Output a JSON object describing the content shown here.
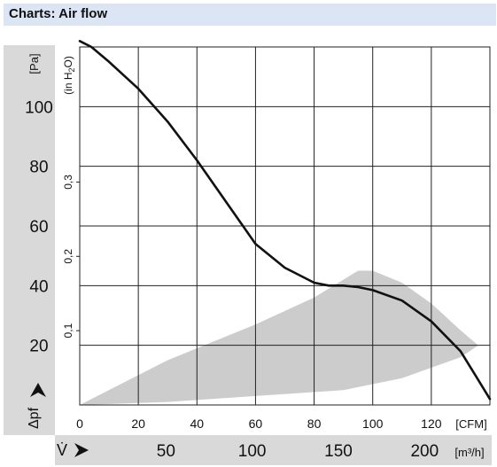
{
  "header": {
    "title": "Charts: Air flow"
  },
  "chart_data": {
    "type": "line",
    "title": "",
    "left_axis": {
      "unit": "[Pa]",
      "range": [
        0,
        120
      ],
      "ticks": [
        20,
        40,
        60,
        80,
        100
      ]
    },
    "inner_axis": {
      "unit_prefix": "(in H",
      "unit_sub": "2",
      "unit_suffix": "O)",
      "ticks": [
        "0,1",
        "0,2",
        "0,3"
      ],
      "tick_values": [
        0.1,
        0.2,
        0.3
      ]
    },
    "x_axis": {
      "unit": "[CFM]",
      "range": [
        0,
        140
      ],
      "ticks": [
        0,
        20,
        40,
        60,
        80,
        100,
        120
      ]
    },
    "x2_axis": {
      "unit": "[m³/h]",
      "ticks": [
        "50",
        "100",
        "150",
        "200"
      ],
      "tick_values": [
        50,
        100,
        150,
        200
      ]
    },
    "y_symbol": "Δpf",
    "x_symbol": "V̇",
    "series": [
      {
        "x": [
          0,
          4,
          10,
          20,
          30,
          40,
          50,
          60,
          70,
          80,
          85,
          88,
          90,
          95,
          100,
          110,
          120,
          130,
          135,
          140
        ],
        "y": [
          122,
          120,
          115,
          106,
          95,
          82,
          68,
          54,
          46,
          41,
          40,
          40,
          40,
          39.5,
          38.5,
          35,
          28,
          18,
          10,
          2
        ]
      }
    ],
    "operating_region": {
      "color": "#cccccc",
      "x": [
        0,
        30,
        60,
        80,
        90,
        95,
        100,
        110,
        120,
        130,
        136,
        130,
        110,
        90,
        60,
        30,
        0
      ],
      "y": [
        0,
        15,
        27,
        36,
        42,
        45,
        45,
        41,
        34,
        25,
        20,
        16,
        9,
        5,
        3,
        1,
        0
      ]
    },
    "colors": {
      "curve": "#111111",
      "grid": "#222222",
      "band": "#d9d9d9"
    }
  }
}
